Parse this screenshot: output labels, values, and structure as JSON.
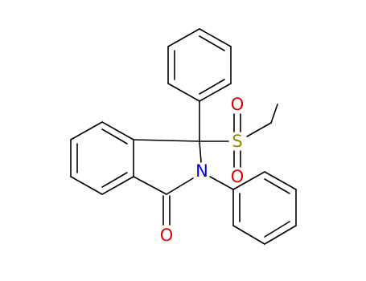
{
  "atoms": [
    {
      "label": "S"
    },
    {
      "label": "O"
    },
    {
      "label": "O"
    },
    {
      "label": "N"
    },
    {
      "label": "O"
    }
  ]
}
